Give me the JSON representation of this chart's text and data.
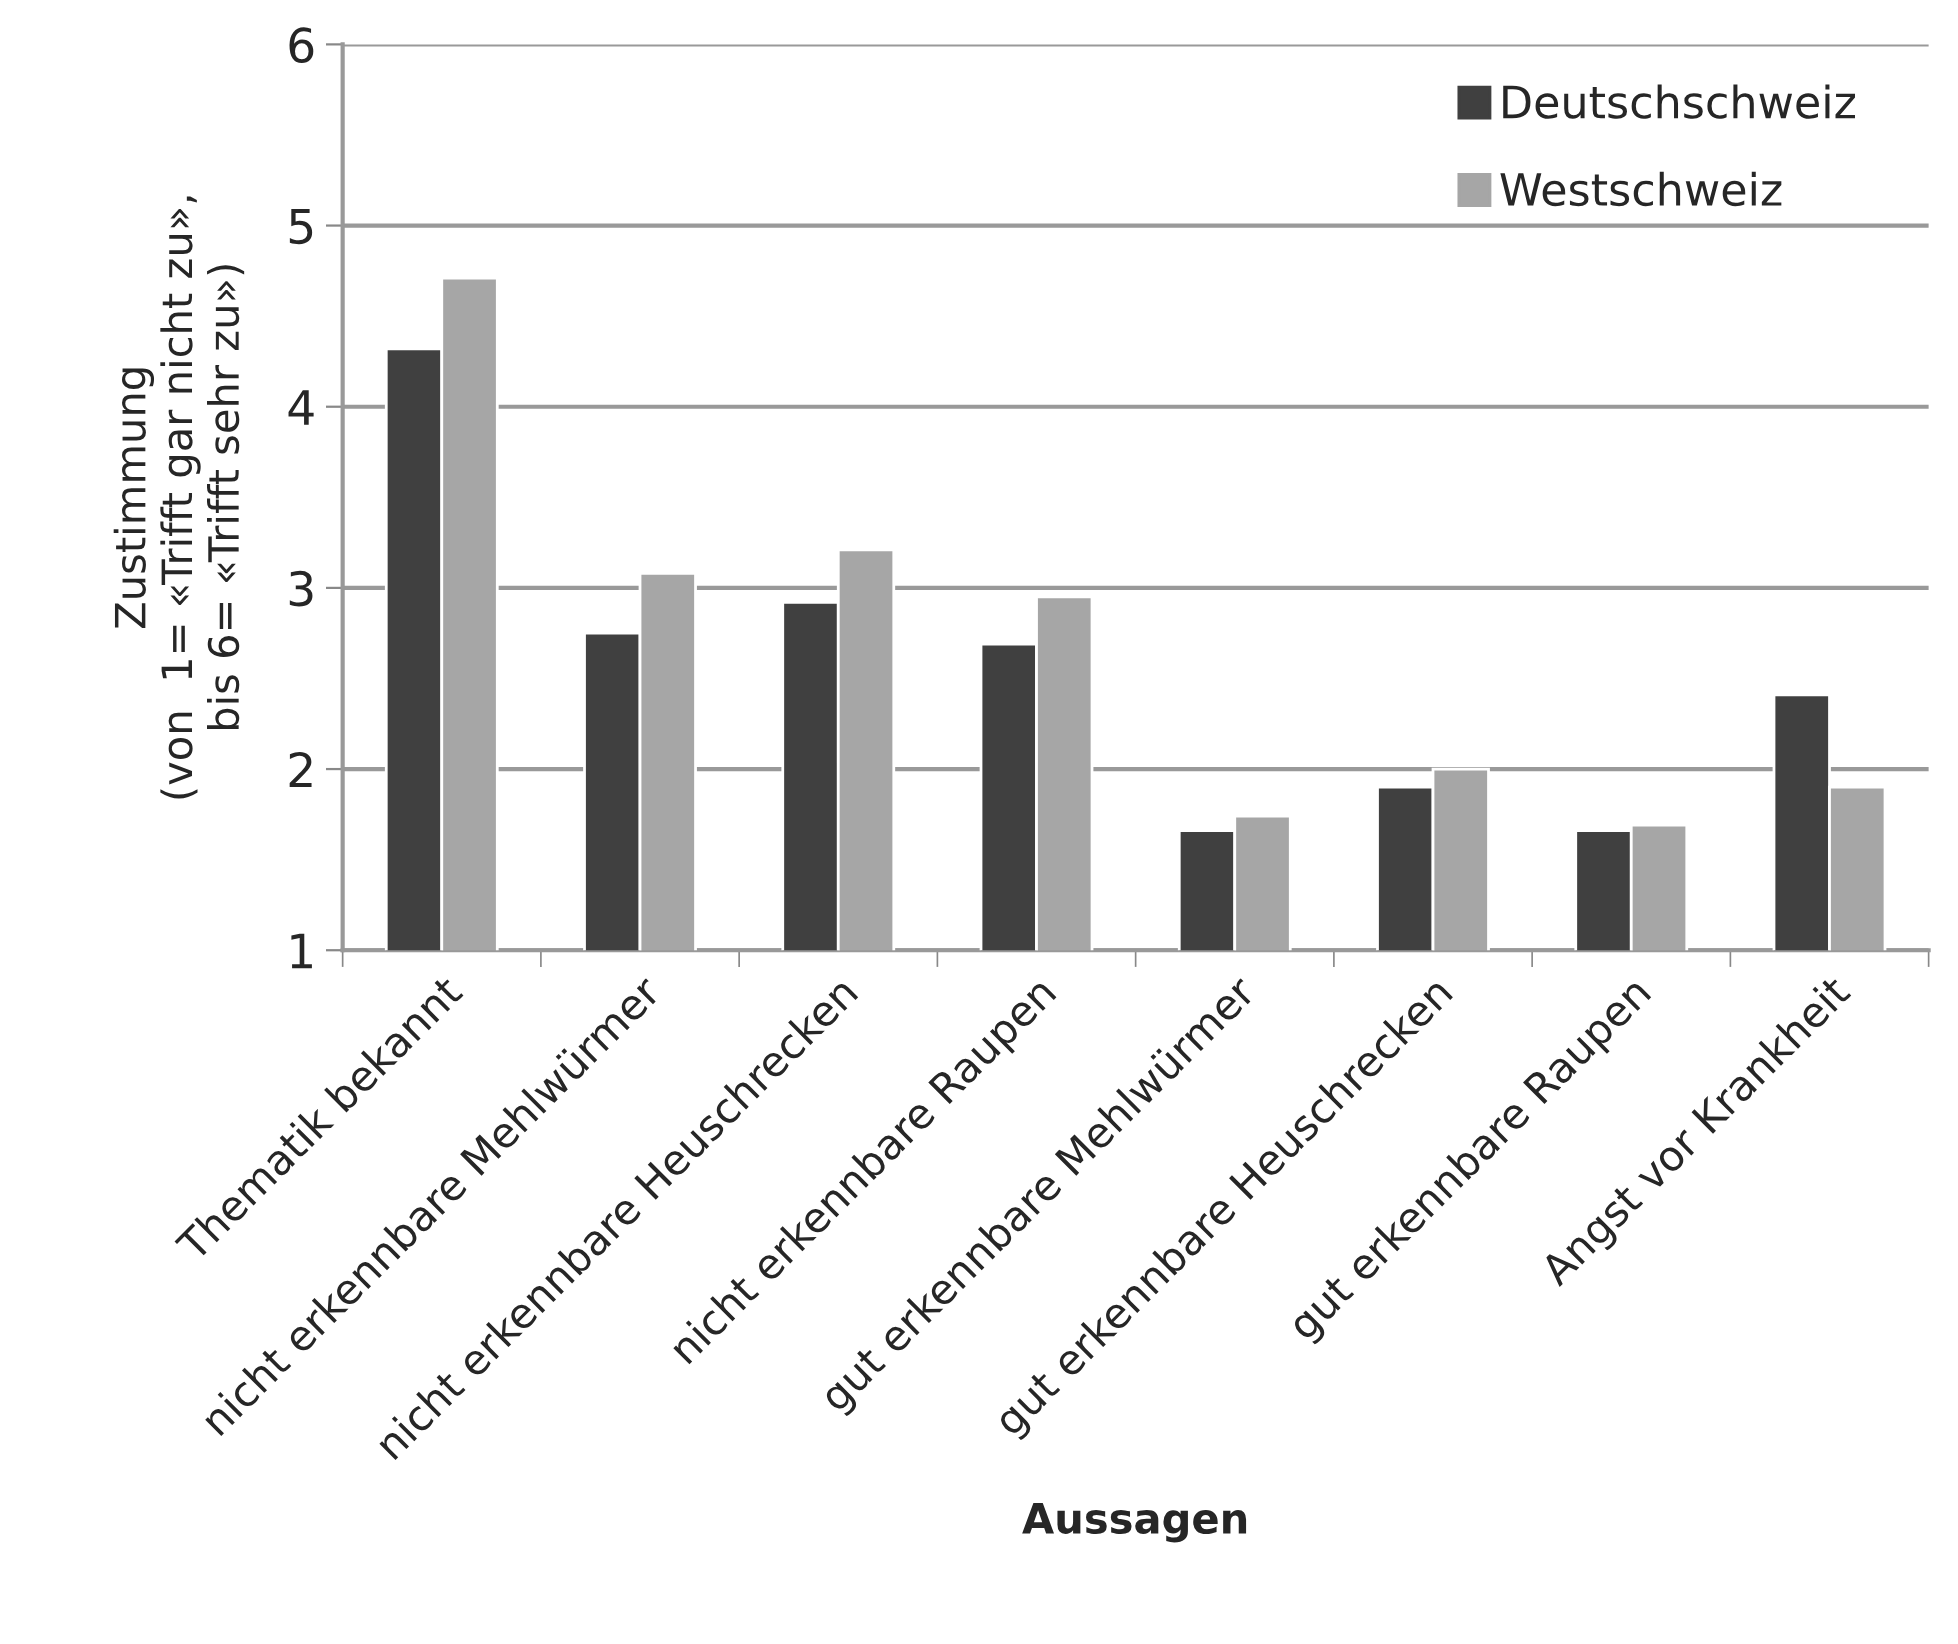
{
  "chart_data": {
    "type": "bar",
    "categories": [
      "Thematik bekannt",
      "nicht erkennbare Mehlwürmer",
      "nicht erkennbare Heuschrecken",
      "nicht erkennbare Raupen",
      "gut erkennbare Mehlwürmer",
      "gut erkennbare Heuschrecken",
      "gut erkennbare Raupen",
      "Angst vor Krankheit"
    ],
    "series": [
      {
        "name": "Deutschschweiz",
        "color": "#404040",
        "values": [
          4.32,
          2.75,
          2.92,
          2.69,
          1.66,
          1.9,
          1.66,
          2.41
        ]
      },
      {
        "name": "Westschweiz",
        "color": "#a6a6a6",
        "values": [
          4.71,
          3.08,
          3.21,
          2.95,
          1.74,
          2.0,
          1.69,
          1.9
        ]
      }
    ],
    "xlabel": "Aussagen",
    "ylabel": "Zustimmung\n(von  1= «Trifft gar nicht zu»,\nbis 6= «Trifft sehr zu»)",
    "ylim": [
      1,
      6
    ],
    "yticks": [
      1,
      2,
      3,
      4,
      5,
      6
    ],
    "grid": "y",
    "legend": "top right"
  }
}
